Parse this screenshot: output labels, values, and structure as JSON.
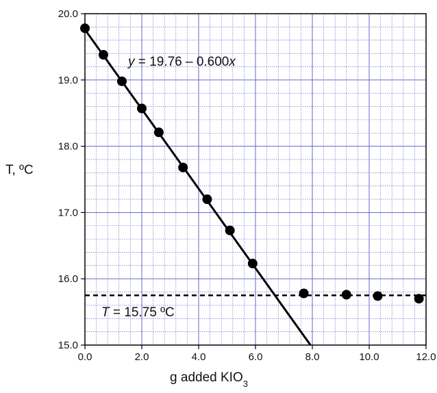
{
  "chart_data": {
    "type": "scatter",
    "xlabel": "g added KIO",
    "xlabel_subscript": "3",
    "ylabel": "T, ºC",
    "xlim": [
      0.0,
      12.0
    ],
    "ylim": [
      15.0,
      20.0
    ],
    "x_ticks": [
      "0.0",
      "2.0",
      "4.0",
      "6.0",
      "8.0",
      "10.0",
      "12.0"
    ],
    "y_ticks": [
      "15.0",
      "16.0",
      "17.0",
      "18.0",
      "19.0",
      "20.0"
    ],
    "grid": true,
    "grid_color": "#5555cc",
    "points": [
      {
        "x": 0.0,
        "y": 19.78
      },
      {
        "x": 0.65,
        "y": 19.38
      },
      {
        "x": 1.3,
        "y": 18.98
      },
      {
        "x": 2.0,
        "y": 18.57
      },
      {
        "x": 2.6,
        "y": 18.21
      },
      {
        "x": 3.45,
        "y": 17.68
      },
      {
        "x": 4.3,
        "y": 17.2
      },
      {
        "x": 5.1,
        "y": 16.73
      },
      {
        "x": 5.9,
        "y": 16.23
      },
      {
        "x": 7.7,
        "y": 15.78
      },
      {
        "x": 9.2,
        "y": 15.76
      },
      {
        "x": 10.3,
        "y": 15.74
      },
      {
        "x": 11.75,
        "y": 15.7
      }
    ],
    "fit_line": {
      "intercept": 19.76,
      "slope": -0.6,
      "x_range": [
        0.0,
        7.93
      ]
    },
    "baseline": {
      "y": 15.75,
      "style": "dashed"
    },
    "annotations": {
      "fit_var": "y",
      "fit_rest": " = 19.76 – 0.600",
      "fit_x": "x",
      "baseline_var": "T",
      "baseline_rest": " = 15.75 ºC"
    }
  }
}
